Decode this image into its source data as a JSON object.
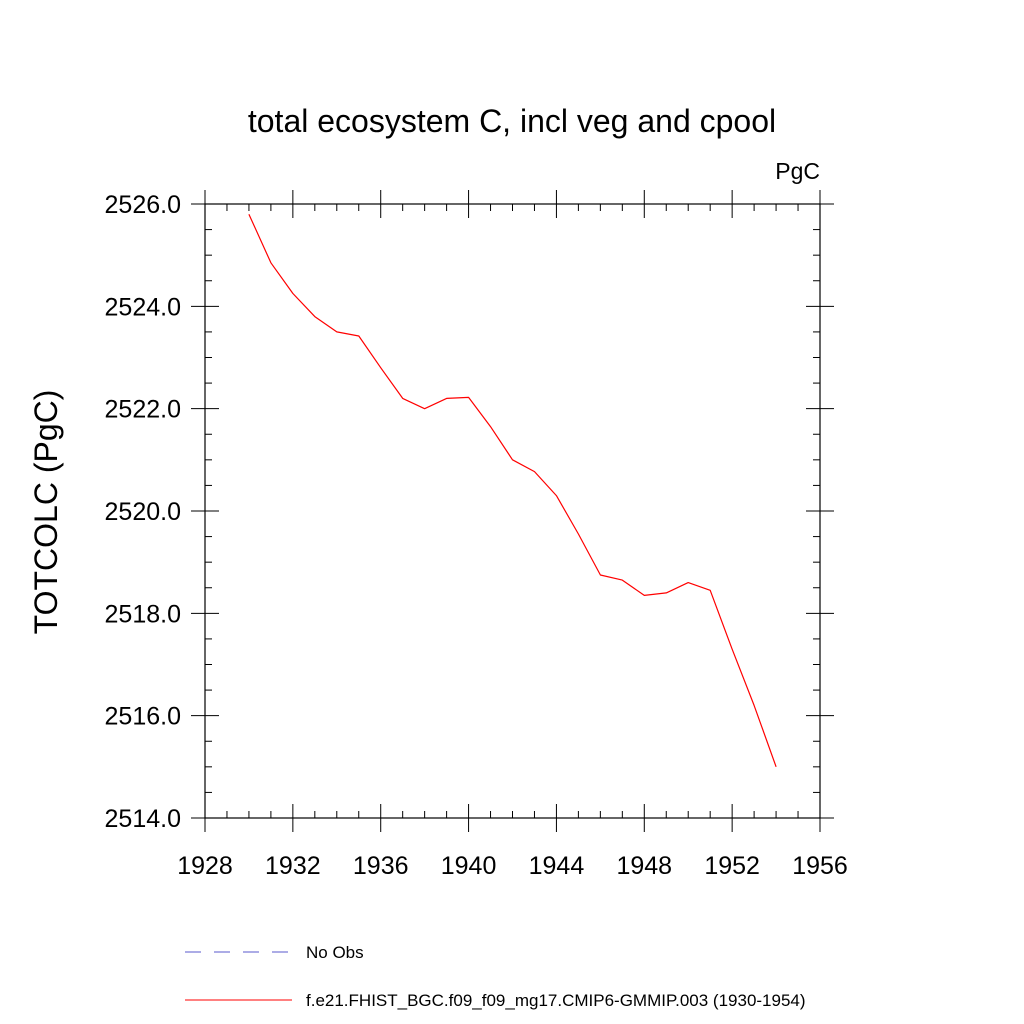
{
  "chart_data": {
    "type": "line",
    "title": "total ecosystem C, incl veg and cpool",
    "units_label": "PgC",
    "ylabel": "TOTCOLC  (PgC)",
    "xlabel": "",
    "xlim": [
      1928,
      1956
    ],
    "ylim": [
      2514,
      2526
    ],
    "x_ticks": [
      1928,
      1932,
      1936,
      1940,
      1944,
      1948,
      1952,
      1956
    ],
    "x_tick_labels": [
      "1928",
      "1932",
      "1936",
      "1940",
      "1944",
      "1948",
      "1952",
      "1956"
    ],
    "y_ticks": [
      2514,
      2516,
      2518,
      2520,
      2522,
      2524,
      2526
    ],
    "y_tick_labels": [
      "2514.0",
      "2516.0",
      "2518.0",
      "2520.0",
      "2522.0",
      "2524.0",
      "2526.0"
    ],
    "grid": false,
    "legend_position": "bottom",
    "series": [
      {
        "name": "f.e21.FHIST_BGC.f09_f09_mg17.CMIP6-GMMIP.003 (1930-1954)",
        "color": "#ff0000",
        "dash": "solid",
        "x": [
          1930,
          1931,
          1932,
          1933,
          1934,
          1935,
          1936,
          1937,
          1938,
          1939,
          1940,
          1941,
          1942,
          1943,
          1944,
          1945,
          1946,
          1947,
          1948,
          1949,
          1950,
          1951,
          1952,
          1953,
          1954
        ],
        "y": [
          2525.8,
          2524.85,
          2524.25,
          2523.8,
          2523.5,
          2523.42,
          2522.8,
          2522.2,
          2522.0,
          2522.2,
          2522.22,
          2521.65,
          2521.0,
          2520.77,
          2520.3,
          2519.55,
          2518.75,
          2518.65,
          2518.35,
          2518.4,
          2518.6,
          2518.45,
          2517.3,
          2516.2,
          2515.0
        ]
      }
    ],
    "legend": [
      {
        "label": "No Obs",
        "color": "#5a5acc",
        "dash": "dashed"
      },
      {
        "label": "f.e21.FHIST_BGC.f09_f09_mg17.CMIP6-GMMIP.003 (1930-1954)",
        "color": "#ff0000",
        "dash": "solid"
      }
    ]
  }
}
